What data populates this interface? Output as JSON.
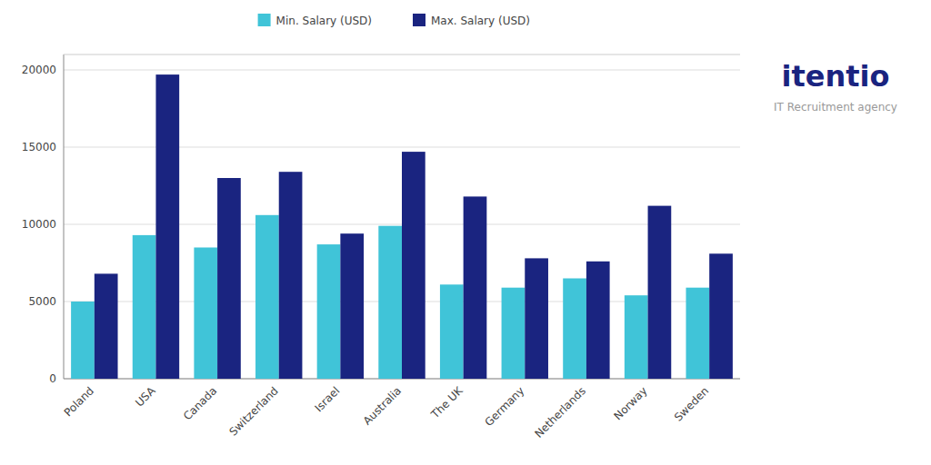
{
  "chart_data": {
    "type": "bar",
    "categories": [
      "Poland",
      "USA",
      "Canada",
      "Switzerland",
      "Israel",
      "Australia",
      "The UK",
      "Germany",
      "Netherlands",
      "Norway",
      "Sweden"
    ],
    "series": [
      {
        "name": "Min. Salary (USD)",
        "color": "#40C4D8",
        "values": [
          5000,
          9300,
          8500,
          10600,
          8700,
          9900,
          6100,
          5900,
          6500,
          5400,
          5900
        ]
      },
      {
        "name": "Max. Salary (USD)",
        "color": "#1A2480",
        "values": [
          6800,
          19700,
          13000,
          13400,
          9400,
          14700,
          11800,
          7800,
          7600,
          11200,
          8100
        ]
      }
    ],
    "ylim": [
      0,
      21000
    ],
    "yticks": [
      0,
      5000,
      10000,
      15000,
      20000
    ],
    "grid": true,
    "legend": "top",
    "annotations": [
      "itentio",
      "IT Recruitment agency"
    ]
  }
}
